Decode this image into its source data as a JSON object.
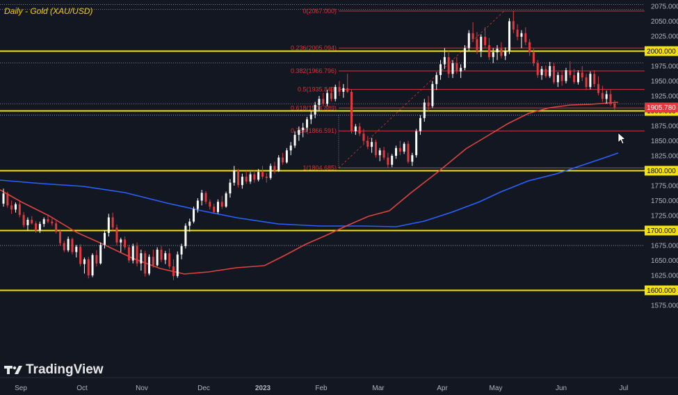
{
  "title": "Daily - Gold (XAU/USD)",
  "logo_text": "TradingView",
  "colors": {
    "background": "#131722",
    "bull": "#ffffff",
    "bear": "#e03a3e",
    "ma_fast": "#e0443f",
    "ma_slow": "#2962ff",
    "key_level": "#f5e400",
    "fib": "#d6363a",
    "axis_text": "#b2b5be"
  },
  "chart_data": {
    "type": "candlestick",
    "title": "Daily - Gold (XAU/USD)",
    "x_ticks": [
      "Sep",
      "Oct",
      "Nov",
      "Dec",
      "2023",
      "Feb",
      "Mar",
      "Apr",
      "May",
      "Jun",
      "Jul"
    ],
    "y_ticks": [
      2075,
      2050,
      2025,
      2000,
      1975,
      1950,
      1925,
      1900,
      1875,
      1850,
      1825,
      1800,
      1775,
      1750,
      1725,
      1700,
      1675,
      1650,
      1625,
      1600,
      1575
    ],
    "y_tick_labels": [
      "2075.000",
      "2050.000",
      "2025.000",
      "2000.000",
      "1975.000",
      "1950.000",
      "1925.000",
      "1900.000",
      "1875.000",
      "1850.000",
      "1825.000",
      "1800.000",
      "1775.000",
      "1750.000",
      "1725.000",
      "1700.000",
      "1675.000",
      "1650.000",
      "1625.000",
      "1600.000",
      "1575.000"
    ],
    "ylim": [
      1565,
      2083
    ],
    "last_price": 1905.78,
    "last_price_label": "1905.780",
    "key_levels": [
      {
        "value": 2000,
        "label": "2000.000"
      },
      {
        "value": 1900,
        "label": "1900.000"
      },
      {
        "value": 1800,
        "label": "1800.000"
      },
      {
        "value": 1700,
        "label": "1700.000"
      },
      {
        "value": 1600,
        "label": "1600.000"
      }
    ],
    "fibonacci": [
      {
        "ratio": "0",
        "value": 2067.0,
        "label": "0(2067.000)"
      },
      {
        "ratio": "0.236",
        "value": 2005.094,
        "label": "0.236(2005.094)"
      },
      {
        "ratio": "0.382",
        "value": 1966.796,
        "label": "0.382(1966.796)"
      },
      {
        "ratio": "0.5",
        "value": 1935.843,
        "label": "0.5(1935.843)"
      },
      {
        "ratio": "0.618",
        "value": 1904.889,
        "label": "0.618(1904.889)"
      },
      {
        "ratio": "0.764",
        "value": 1866.591,
        "label": "0.764(1866.591)"
      },
      {
        "ratio": "1",
        "value": 1804.685,
        "label": "1(1804.685)"
      }
    ],
    "dotted_levels": [
      2078,
      2070,
      1980,
      1912,
      1893,
      1675
    ],
    "candles_ohlc": [
      [
        1745,
        1770,
        1740,
        1762
      ],
      [
        1762,
        1765,
        1738,
        1742
      ],
      [
        1742,
        1750,
        1728,
        1735
      ],
      [
        1735,
        1747,
        1730,
        1744
      ],
      [
        1744,
        1748,
        1722,
        1726
      ],
      [
        1726,
        1731,
        1705,
        1709
      ],
      [
        1709,
        1722,
        1700,
        1718
      ],
      [
        1718,
        1724,
        1710,
        1712
      ],
      [
        1712,
        1716,
        1696,
        1700
      ],
      [
        1700,
        1715,
        1696,
        1711
      ],
      [
        1711,
        1722,
        1706,
        1719
      ],
      [
        1719,
        1725,
        1712,
        1715
      ],
      [
        1715,
        1720,
        1708,
        1712
      ],
      [
        1712,
        1716,
        1695,
        1698
      ],
      [
        1698,
        1702,
        1675,
        1679
      ],
      [
        1679,
        1683,
        1664,
        1667
      ],
      [
        1667,
        1690,
        1664,
        1686
      ],
      [
        1686,
        1688,
        1660,
        1664
      ],
      [
        1664,
        1676,
        1655,
        1673
      ],
      [
        1673,
        1677,
        1640,
        1644
      ],
      [
        1644,
        1655,
        1628,
        1652
      ],
      [
        1652,
        1656,
        1620,
        1625
      ],
      [
        1625,
        1662,
        1622,
        1659
      ],
      [
        1659,
        1667,
        1640,
        1645
      ],
      [
        1645,
        1680,
        1643,
        1676
      ],
      [
        1676,
        1700,
        1670,
        1696
      ],
      [
        1696,
        1728,
        1690,
        1722
      ],
      [
        1722,
        1730,
        1700,
        1705
      ],
      [
        1705,
        1710,
        1675,
        1680
      ],
      [
        1680,
        1688,
        1664,
        1685
      ],
      [
        1685,
        1690,
        1668,
        1672
      ],
      [
        1672,
        1676,
        1646,
        1650
      ],
      [
        1650,
        1678,
        1645,
        1674
      ],
      [
        1674,
        1680,
        1640,
        1645
      ],
      [
        1645,
        1668,
        1633,
        1662
      ],
      [
        1662,
        1666,
        1623,
        1628
      ],
      [
        1628,
        1660,
        1625,
        1656
      ],
      [
        1656,
        1668,
        1638,
        1642
      ],
      [
        1642,
        1672,
        1640,
        1668
      ],
      [
        1668,
        1674,
        1647,
        1651
      ],
      [
        1651,
        1666,
        1644,
        1662
      ],
      [
        1662,
        1670,
        1636,
        1640
      ],
      [
        1640,
        1652,
        1617,
        1624
      ],
      [
        1624,
        1665,
        1621,
        1660
      ],
      [
        1660,
        1678,
        1652,
        1674
      ],
      [
        1674,
        1712,
        1670,
        1708
      ],
      [
        1708,
        1720,
        1698,
        1715
      ],
      [
        1715,
        1740,
        1712,
        1736
      ],
      [
        1736,
        1754,
        1730,
        1750
      ],
      [
        1750,
        1768,
        1742,
        1763
      ],
      [
        1763,
        1766,
        1744,
        1748
      ],
      [
        1748,
        1752,
        1735,
        1740
      ],
      [
        1740,
        1745,
        1728,
        1731
      ],
      [
        1731,
        1752,
        1728,
        1748
      ],
      [
        1748,
        1758,
        1736,
        1740
      ],
      [
        1740,
        1765,
        1738,
        1762
      ],
      [
        1762,
        1786,
        1755,
        1780
      ],
      [
        1780,
        1808,
        1775,
        1800
      ],
      [
        1800,
        1803,
        1772,
        1776
      ],
      [
        1776,
        1795,
        1770,
        1790
      ],
      [
        1790,
        1800,
        1778,
        1782
      ],
      [
        1782,
        1798,
        1778,
        1794
      ],
      [
        1794,
        1800,
        1780,
        1785
      ],
      [
        1785,
        1803,
        1782,
        1798
      ],
      [
        1798,
        1808,
        1786,
        1790
      ],
      [
        1790,
        1796,
        1780,
        1788
      ],
      [
        1788,
        1812,
        1785,
        1808
      ],
      [
        1808,
        1815,
        1795,
        1800
      ],
      [
        1800,
        1826,
        1798,
        1822
      ],
      [
        1822,
        1830,
        1810,
        1814
      ],
      [
        1814,
        1838,
        1812,
        1834
      ],
      [
        1834,
        1848,
        1826,
        1842
      ],
      [
        1842,
        1866,
        1838,
        1860
      ],
      [
        1860,
        1874,
        1850,
        1868
      ],
      [
        1868,
        1880,
        1856,
        1872
      ],
      [
        1872,
        1890,
        1865,
        1886
      ],
      [
        1886,
        1900,
        1878,
        1894
      ],
      [
        1894,
        1915,
        1888,
        1910
      ],
      [
        1910,
        1925,
        1900,
        1920
      ],
      [
        1920,
        1930,
        1908,
        1912
      ],
      [
        1912,
        1935,
        1908,
        1930
      ],
      [
        1930,
        1940,
        1916,
        1920
      ],
      [
        1920,
        1944,
        1916,
        1940
      ],
      [
        1940,
        1950,
        1925,
        1932
      ],
      [
        1932,
        1945,
        1922,
        1938
      ],
      [
        1938,
        1962,
        1930,
        1932
      ],
      [
        1932,
        1936,
        1862,
        1866
      ],
      [
        1866,
        1878,
        1860,
        1874
      ],
      [
        1874,
        1880,
        1858,
        1862
      ],
      [
        1862,
        1870,
        1845,
        1850
      ],
      [
        1850,
        1858,
        1836,
        1840
      ],
      [
        1840,
        1855,
        1830,
        1848
      ],
      [
        1848,
        1852,
        1822,
        1826
      ],
      [
        1826,
        1838,
        1816,
        1834
      ],
      [
        1834,
        1840,
        1818,
        1822
      ],
      [
        1822,
        1830,
        1805,
        1810
      ],
      [
        1810,
        1828,
        1806,
        1825
      ],
      [
        1825,
        1842,
        1820,
        1838
      ],
      [
        1838,
        1850,
        1826,
        1832
      ],
      [
        1832,
        1848,
        1828,
        1845
      ],
      [
        1845,
        1850,
        1812,
        1815
      ],
      [
        1815,
        1830,
        1808,
        1826
      ],
      [
        1826,
        1870,
        1822,
        1866
      ],
      [
        1866,
        1893,
        1860,
        1888
      ],
      [
        1888,
        1920,
        1882,
        1914
      ],
      [
        1914,
        1925,
        1900,
        1908
      ],
      [
        1908,
        1950,
        1905,
        1945
      ],
      [
        1945,
        1965,
        1935,
        1960
      ],
      [
        1960,
        1985,
        1952,
        1978
      ],
      [
        1978,
        2005,
        1970,
        1990
      ],
      [
        1990,
        2000,
        1955,
        1962
      ],
      [
        1962,
        1985,
        1955,
        1980
      ],
      [
        1980,
        1990,
        1962,
        1966
      ],
      [
        1966,
        1978,
        1955,
        1972
      ],
      [
        1972,
        2010,
        1968,
        2005
      ],
      [
        2005,
        2035,
        2000,
        2030
      ],
      [
        2030,
        2048,
        2015,
        2020
      ],
      [
        2020,
        2032,
        1995,
        2000
      ],
      [
        2000,
        2028,
        1990,
        2024
      ],
      [
        2024,
        2040,
        2005,
        2010
      ],
      [
        2010,
        2022,
        1985,
        1990
      ],
      [
        1990,
        2005,
        1980,
        1998
      ],
      [
        1998,
        2010,
        1985,
        2004
      ],
      [
        2004,
        2015,
        1988,
        1992
      ],
      [
        1992,
        2006,
        1985,
        2000
      ],
      [
        2000,
        2055,
        1995,
        2050
      ],
      [
        2050,
        2067,
        2030,
        2036
      ],
      [
        2036,
        2045,
        2018,
        2024
      ],
      [
        2024,
        2035,
        2005,
        2030
      ],
      [
        2030,
        2040,
        2010,
        2015
      ],
      [
        2015,
        2020,
        1992,
        1998
      ],
      [
        1998,
        2004,
        1975,
        1980
      ],
      [
        1980,
        1985,
        1955,
        1960
      ],
      [
        1960,
        1975,
        1952,
        1970
      ],
      [
        1970,
        1976,
        1955,
        1958
      ],
      [
        1958,
        1982,
        1955,
        1975
      ],
      [
        1975,
        1980,
        1945,
        1948
      ],
      [
        1948,
        1965,
        1940,
        1960
      ],
      [
        1960,
        1968,
        1942,
        1950
      ],
      [
        1950,
        1972,
        1946,
        1968
      ],
      [
        1968,
        1983,
        1955,
        1960
      ],
      [
        1960,
        1970,
        1945,
        1948
      ],
      [
        1948,
        1968,
        1944,
        1964
      ],
      [
        1964,
        1975,
        1950,
        1956
      ],
      [
        1956,
        1962,
        1935,
        1940
      ],
      [
        1940,
        1966,
        1936,
        1962
      ],
      [
        1962,
        1968,
        1940,
        1945
      ],
      [
        1945,
        1958,
        1926,
        1930
      ],
      [
        1930,
        1942,
        1915,
        1920
      ],
      [
        1920,
        1934,
        1912,
        1928
      ],
      [
        1928,
        1935,
        1908,
        1912
      ],
      [
        1912,
        1918,
        1902,
        1906
      ]
    ]
  }
}
